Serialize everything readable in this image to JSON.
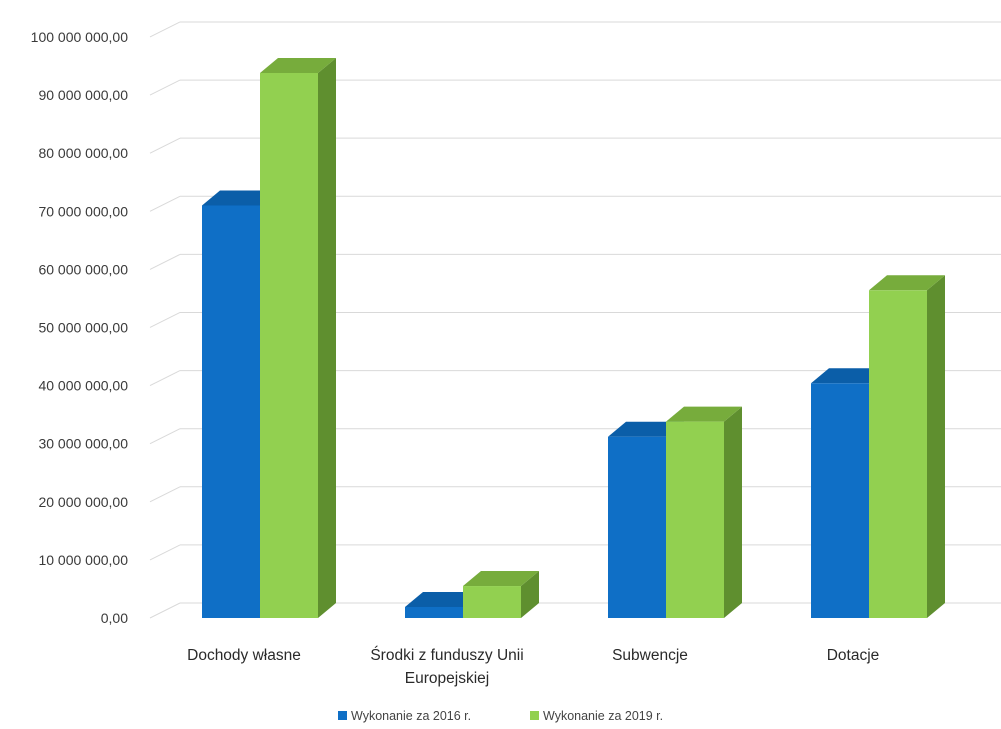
{
  "chart_data": {
    "type": "bar",
    "style": "3d-clustered-column",
    "categories": [
      [
        "Dochody własne"
      ],
      [
        "Środki z funduszy Unii",
        "Europejskiej"
      ],
      [
        "Subwencje"
      ],
      [
        "Dotacje"
      ]
    ],
    "series": [
      {
        "name": "Wykonanie za 2016 r.",
        "color": "#0f6fc6",
        "side_color": "#0a4f8e",
        "top_color": "#0b5ea8",
        "values": [
          71000000,
          1900000,
          31200000,
          40400000
        ]
      },
      {
        "name": "Wykonanie za 2019 r.",
        "color": "#92d050",
        "side_color": "#5f8f2f",
        "top_color": "#77ac3c",
        "values": [
          93800000,
          5500000,
          33800000,
          56400000
        ]
      }
    ],
    "yticks": [
      "0,00",
      "10 000 000,00",
      "20 000 000,00",
      "30 000 000,00",
      "40 000 000,00",
      "50 000 000,00",
      "60 000 000,00",
      "70 000 000,00",
      "80 000 000,00",
      "90 000 000,00",
      "100 000 000,00"
    ],
    "ylim": [
      0,
      105000000
    ],
    "grid": true,
    "legend_position": "bottom"
  }
}
